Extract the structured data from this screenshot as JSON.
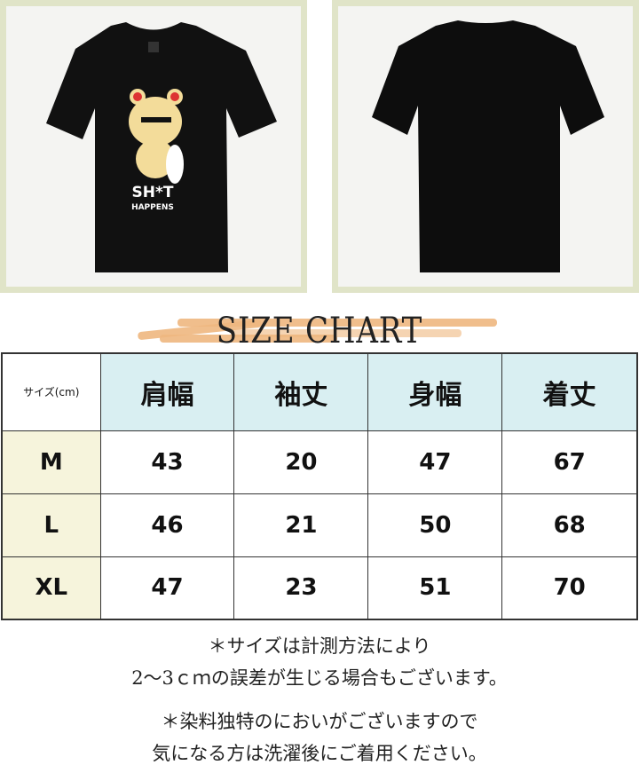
{
  "photos": {
    "front_print_line1": "SH*T",
    "front_print_line2": "HAPPENS"
  },
  "title": "SIZE CHART",
  "table": {
    "corner": "サイズ(cm)",
    "headers": [
      "肩幅",
      "袖丈",
      "身幅",
      "着丈"
    ],
    "rows": [
      {
        "size": "M",
        "values": [
          "43",
          "20",
          "47",
          "67"
        ]
      },
      {
        "size": "L",
        "values": [
          "46",
          "21",
          "50",
          "68"
        ]
      },
      {
        "size": "XL",
        "values": [
          "47",
          "23",
          "51",
          "70"
        ]
      }
    ]
  },
  "notes": [
    {
      "line1": "＊サイズは計測方法により",
      "line2": "2～3ｃｍの誤差が生じる場合もございます。"
    },
    {
      "line1": "＊染料独特のにおいがございますので",
      "line2": "気になる方は洗濯後にご着用ください。"
    }
  ],
  "colors": {
    "frame": "#e0e4c8",
    "header_bg": "#d9eff2",
    "size_bg": "#f6f4dc",
    "brush": "#eeb77f"
  }
}
